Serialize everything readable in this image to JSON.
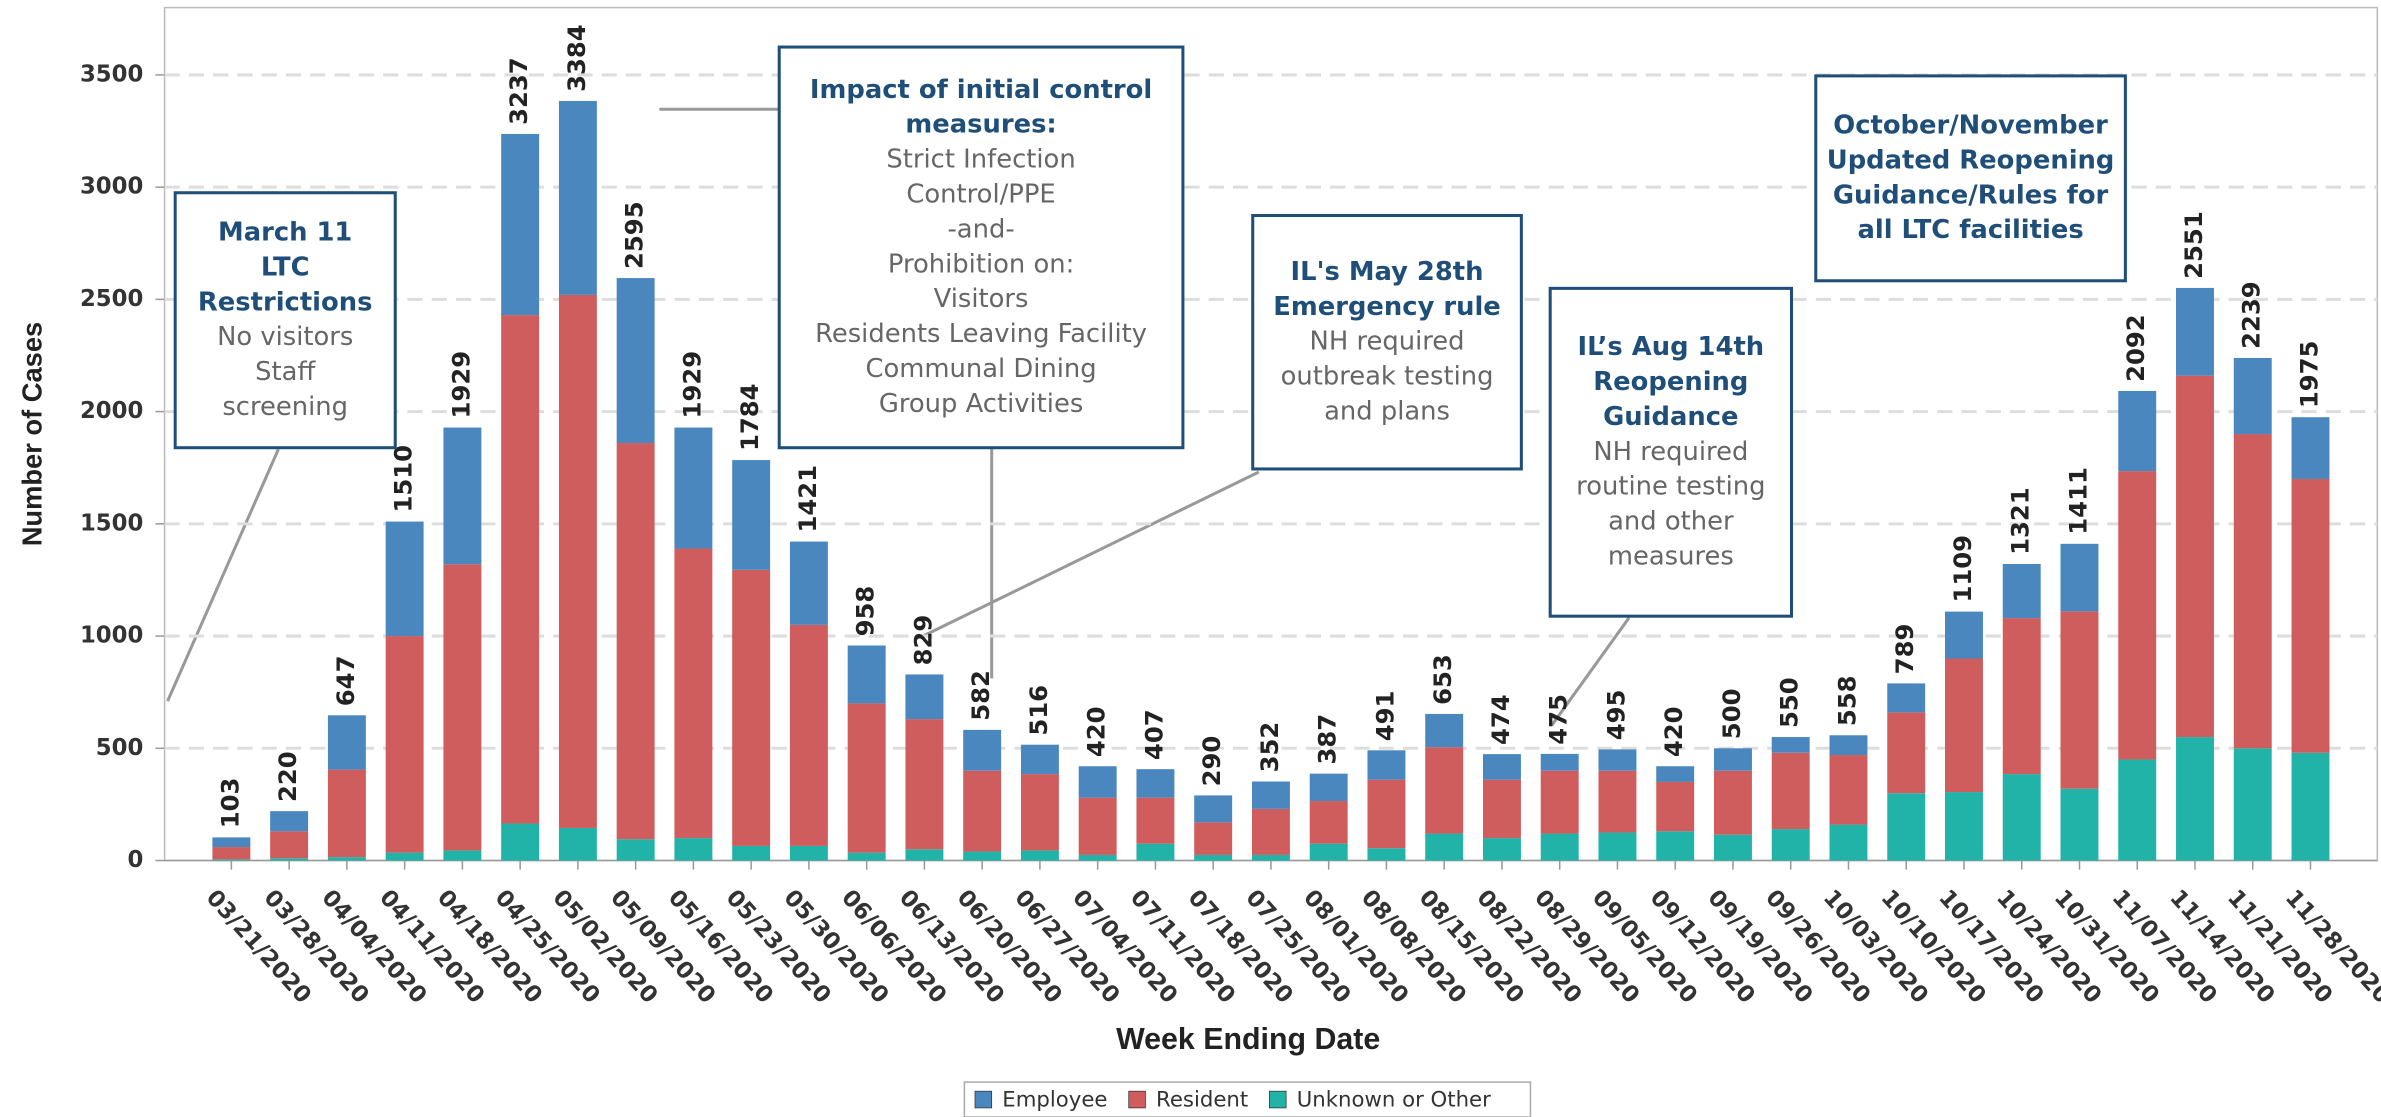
{
  "chart_data": {
    "type": "stacked_bar",
    "x_label": "Week Ending Date",
    "y_label": "Number of Cases",
    "categories": [
      "03/21/2020",
      "03/28/2020",
      "04/04/2020",
      "04/11/2020",
      "04/18/2020",
      "04/25/2020",
      "05/02/2020",
      "05/09/2020",
      "05/16/2020",
      "05/23/2020",
      "05/30/2020",
      "06/06/2020",
      "06/13/2020",
      "06/20/2020",
      "06/27/2020",
      "07/04/2020",
      "07/11/2020",
      "07/18/2020",
      "07/25/2020",
      "08/01/2020",
      "08/08/2020",
      "08/15/2020",
      "08/22/2020",
      "08/29/2020",
      "09/05/2020",
      "09/12/2020",
      "09/19/2020",
      "09/26/2020",
      "10/03/2020",
      "10/10/2020",
      "10/17/2020",
      "10/24/2020",
      "10/31/2020",
      "11/07/2020",
      "11/14/2020",
      "11/21/2020",
      "11/28/2020"
    ],
    "series": [
      {
        "name": "Unknown or Other",
        "color": "#21b3a7",
        "values": [
          5,
          10,
          15,
          35,
          45,
          165,
          145,
          95,
          100,
          65,
          65,
          35,
          50,
          40,
          45,
          25,
          75,
          25,
          25,
          75,
          55,
          120,
          100,
          120,
          125,
          130,
          115,
          140,
          160,
          300,
          305,
          385,
          320,
          450,
          550,
          500,
          480
        ]
      },
      {
        "name": "Resident",
        "color": "#d05d5d",
        "values": [
          55,
          120,
          390,
          965,
          1275,
          2265,
          2375,
          1765,
          1290,
          1230,
          985,
          665,
          580,
          360,
          340,
          255,
          205,
          145,
          205,
          190,
          305,
          385,
          260,
          280,
          275,
          220,
          285,
          340,
          310,
          360,
          595,
          695,
          790,
          1285,
          1610,
          1400,
          1220
        ]
      },
      {
        "name": "Employee",
        "color": "#4a87bf",
        "values": [
          43,
          90,
          242,
          510,
          609,
          807,
          864,
          735,
          539,
          489,
          371,
          258,
          199,
          182,
          131,
          140,
          127,
          120,
          122,
          122,
          131,
          148,
          114,
          75,
          95,
          70,
          100,
          70,
          88,
          129,
          209,
          241,
          301,
          357,
          391,
          339,
          275
        ]
      }
    ],
    "totals": [
      103,
      220,
      647,
      1510,
      1929,
      3237,
      3384,
      2595,
      1929,
      1784,
      1421,
      958,
      829,
      582,
      516,
      420,
      407,
      290,
      352,
      387,
      491,
      653,
      474,
      475,
      495,
      420,
      500,
      550,
      558,
      789,
      1109,
      1321,
      1411,
      2092,
      2551,
      2239,
      1975
    ],
    "legend_order": [
      2,
      1,
      0
    ],
    "ylim": [
      0,
      3800
    ],
    "yticks": [
      0,
      500,
      1000,
      1500,
      2000,
      2500,
      3000,
      3500
    ],
    "grid": true,
    "annotations": [
      {
        "title": [
          "March 11",
          "LTC",
          "Restrictions"
        ],
        "body": [
          "No visitors",
          "Staff",
          "screening"
        ]
      },
      {
        "title": [
          "Impact of initial control",
          "measures:"
        ],
        "body": [
          "Strict Infection",
          "Control/PPE",
          "-and-",
          "Prohibition on:",
          "Visitors",
          "Residents Leaving Facility",
          "Communal Dining",
          "Group Activities"
        ]
      },
      {
        "title": [
          "IL's May 28th",
          "Emergency rule"
        ],
        "body": [
          "NH required",
          "outbreak testing",
          "and plans"
        ]
      },
      {
        "title": [
          "IL’s Aug 14th",
          "Reopening",
          "Guidance"
        ],
        "body": [
          "NH required",
          "routine testing",
          "and other",
          "measures"
        ]
      },
      {
        "title": [
          "October/November",
          "Updated Reopening",
          "Guidance/Rules for",
          "all LTC facilities"
        ],
        "body": []
      }
    ]
  }
}
